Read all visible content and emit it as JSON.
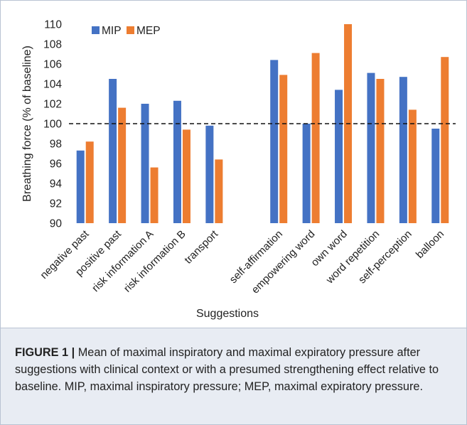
{
  "chart_data": {
    "type": "bar",
    "title": "",
    "xlabel": "Suggestions",
    "ylabel": "Breathing force (% of baseline)",
    "ylim": [
      90,
      110
    ],
    "yticks": [
      90,
      92,
      94,
      96,
      98,
      100,
      102,
      104,
      106,
      108,
      110
    ],
    "grid": false,
    "legend_position": "top-left",
    "reference_line": {
      "y": 100,
      "style": "dashed"
    },
    "categories": [
      "negative past",
      "positive past",
      "risk information A",
      "risk information B",
      "transport",
      "",
      "self-affirmation",
      "empowering word",
      "own word",
      "word repetition",
      "self-perception",
      "balloon"
    ],
    "series": [
      {
        "name": "MIP",
        "color": "#4472c4",
        "values": [
          97.3,
          104.5,
          102.0,
          102.3,
          99.8,
          null,
          106.4,
          100.0,
          103.4,
          105.1,
          104.7,
          99.5
        ]
      },
      {
        "name": "MEP",
        "color": "#ed7d31",
        "values": [
          98.2,
          101.6,
          95.6,
          99.4,
          96.4,
          null,
          104.9,
          107.1,
          110.0,
          104.5,
          101.4,
          106.7
        ]
      }
    ]
  },
  "caption": {
    "label": "FIGURE 1 |",
    "text": " Mean of maximal inspiratory and maximal expiratory pressure after suggestions with clinical context or with a presumed strengthening effect relative to baseline. MIP, maximal inspiratory pressure; MEP, maximal expiratory pressure."
  }
}
